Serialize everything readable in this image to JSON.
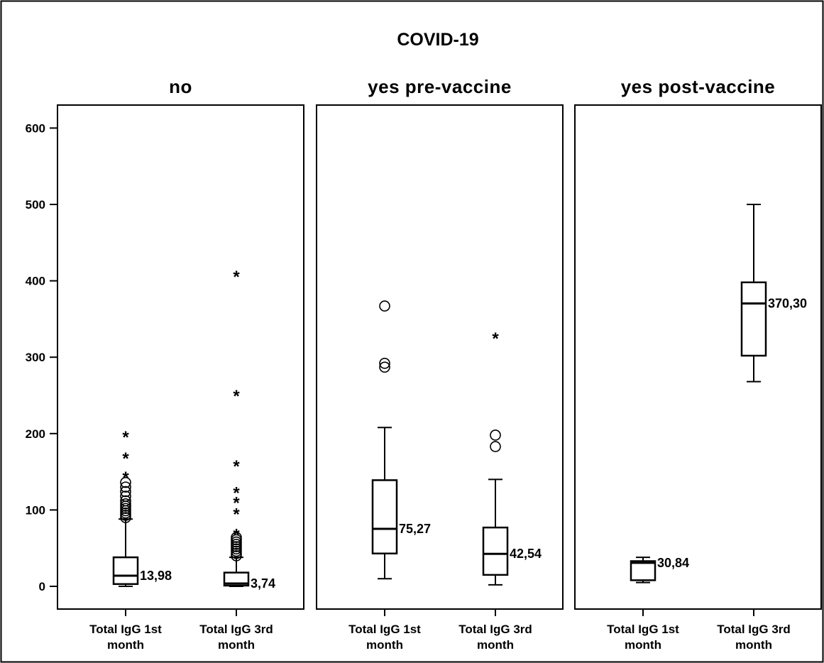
{
  "chart_data": {
    "type": "boxplot",
    "title": "COVID-19",
    "ylim": [
      -30,
      635
    ],
    "yticks": [
      0,
      100,
      200,
      300,
      400,
      500,
      600
    ],
    "panels": [
      {
        "title": "no",
        "boxes": [
          {
            "category": [
              "Total IgG 1st",
              "month"
            ],
            "min": 0,
            "q1": 3,
            "median": 13.98,
            "q3": 38,
            "max": 88,
            "median_label": "13,98",
            "outliers_circle": [
              90,
              93,
              96,
              99,
              102,
              105,
              108,
              112,
              118,
              124,
              130,
              136
            ],
            "outliers_star": [
              145,
              170,
              198
            ]
          },
          {
            "category": [
              "Total IgG 3rd",
              "month"
            ],
            "min": 0,
            "q1": 1,
            "median": 3.74,
            "q3": 18,
            "max": 38,
            "median_label": "3,74",
            "outliers_circle": [
              40,
              43,
              46,
              49,
              52,
              55,
              58,
              61,
              64
            ],
            "outliers_star": [
              70,
              97,
              112,
              125,
              160,
              252,
              408
            ]
          }
        ]
      },
      {
        "title": "yes pre-vaccine",
        "boxes": [
          {
            "category": [
              "Total IgG 1st",
              "month"
            ],
            "min": 10,
            "q1": 43,
            "median": 75.27,
            "q3": 139,
            "max": 208,
            "median_label": "75,27",
            "outliers_circle": [
              287,
              292,
              367
            ],
            "outliers_star": []
          },
          {
            "category": [
              "Total IgG 3rd",
              "month"
            ],
            "min": 2,
            "q1": 15,
            "median": 42.54,
            "q3": 77,
            "max": 140,
            "median_label": "42,54",
            "outliers_circle": [
              183,
              198
            ],
            "outliers_star": [
              327
            ]
          }
        ]
      },
      {
        "title": "yes post-vaccine",
        "boxes": [
          {
            "category": [
              "Total IgG 1st",
              "month"
            ],
            "min": 5,
            "q1": 8,
            "median": 30.84,
            "q3": 33,
            "max": 38,
            "median_label": "30,84",
            "outliers_circle": [],
            "outliers_star": []
          },
          {
            "category": [
              "Total IgG 3rd",
              "month"
            ],
            "min": 268,
            "q1": 302,
            "median": 370.3,
            "q3": 398,
            "max": 500,
            "median_label": "370,30",
            "outliers_circle": [],
            "outliers_star": []
          }
        ]
      }
    ]
  }
}
